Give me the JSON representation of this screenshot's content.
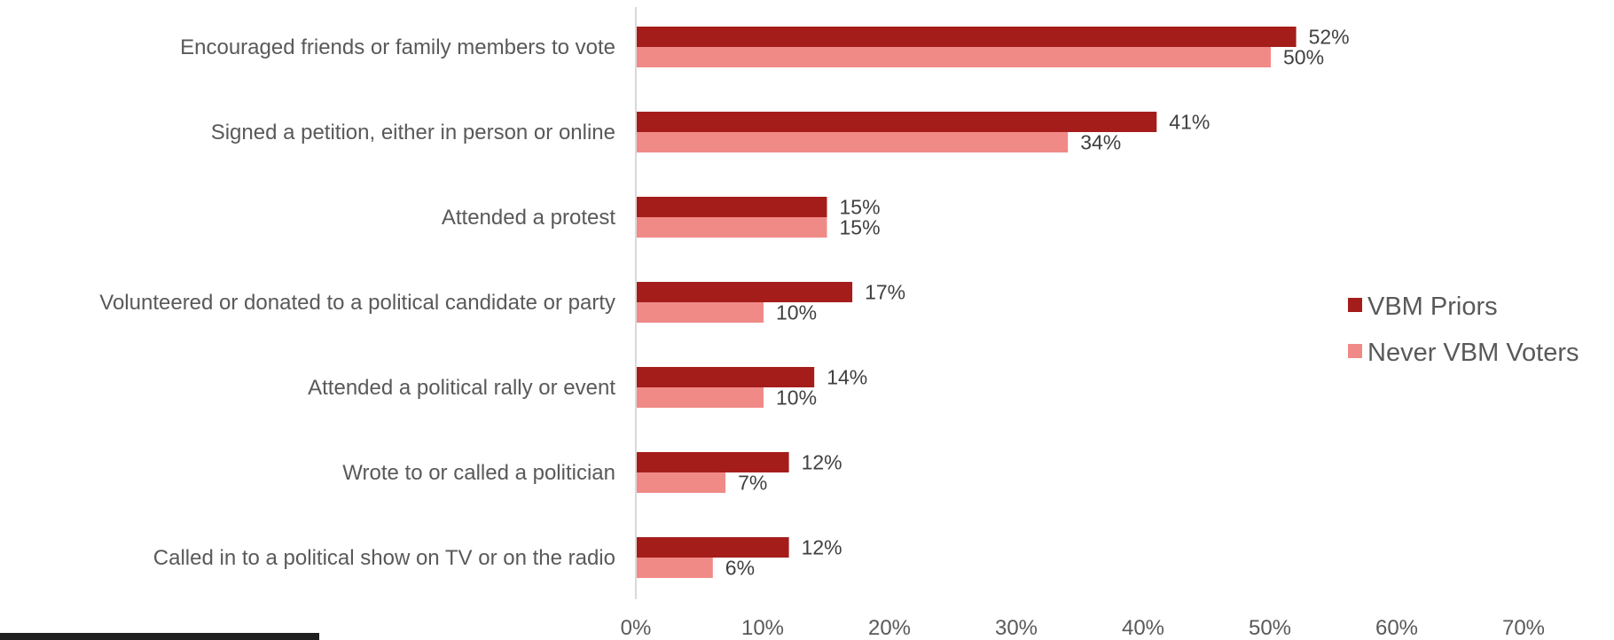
{
  "chart_data": {
    "type": "bar",
    "orientation": "horizontal",
    "categories": [
      "Encouraged friends or family members to vote",
      "Signed a petition, either in person or online",
      "Attended a protest",
      "Volunteered or donated to a political candidate or party",
      "Attended a political rally or event",
      "Wrote to or called a politician",
      "Called in to a political show on TV or on the radio"
    ],
    "series": [
      {
        "name": "VBM Priors",
        "color": "#a51d1a",
        "values": [
          52,
          41,
          15,
          17,
          14,
          12,
          12
        ],
        "labels": [
          "52%",
          "41%",
          "15%",
          "17%",
          "14%",
          "12%",
          "12%"
        ]
      },
      {
        "name": "Never VBM Voters",
        "color": "#f08a87",
        "values": [
          50,
          34,
          15,
          10,
          10,
          7,
          6
        ],
        "labels": [
          "50%",
          "34%",
          "15%",
          "10%",
          "10%",
          "7%",
          "6%"
        ]
      }
    ],
    "xlim": [
      0,
      70
    ],
    "xticks": [
      "0%",
      "10%",
      "20%",
      "30%",
      "40%",
      "50%",
      "60%",
      "70%"
    ],
    "grid": false,
    "legend_position": "right"
  }
}
